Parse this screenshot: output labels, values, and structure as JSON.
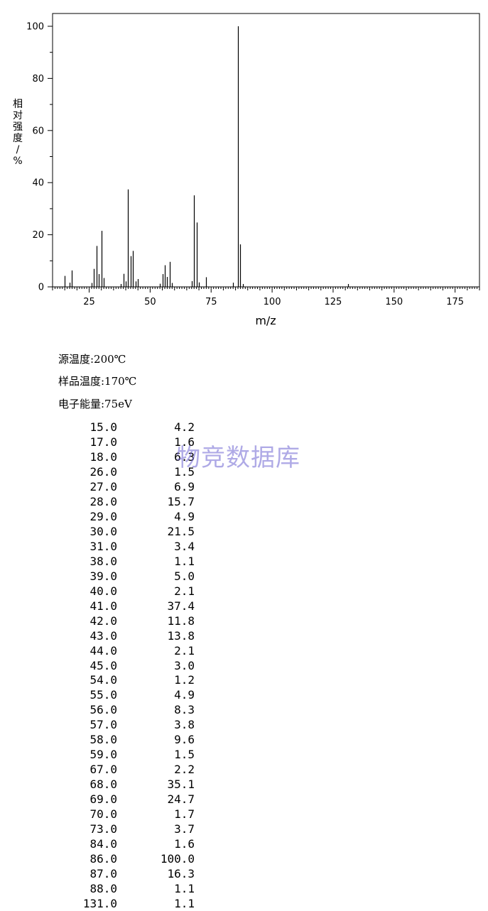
{
  "chart_data": {
    "type": "bar",
    "xlabel": "m/z",
    "ylabel": "相对强度/%",
    "xlim": [
      10,
      185
    ],
    "ylim": [
      0,
      105
    ],
    "xticks": [
      25,
      50,
      75,
      100,
      125,
      150,
      175
    ],
    "yticks": [
      0,
      20,
      40,
      60,
      80,
      100
    ],
    "grid": false,
    "legend": "none",
    "x": [
      15.0,
      17.0,
      18.0,
      26.0,
      27.0,
      28.0,
      29.0,
      30.0,
      31.0,
      38.0,
      39.0,
      40.0,
      41.0,
      42.0,
      43.0,
      44.0,
      45.0,
      54.0,
      55.0,
      56.0,
      57.0,
      58.0,
      59.0,
      67.0,
      68.0,
      69.0,
      70.0,
      73.0,
      84.0,
      86.0,
      87.0,
      88.0,
      131.0
    ],
    "values": [
      4.2,
      1.6,
      6.3,
      1.5,
      6.9,
      15.7,
      4.9,
      21.5,
      3.4,
      1.1,
      5.0,
      2.1,
      37.4,
      11.8,
      13.8,
      2.1,
      3.0,
      1.2,
      4.9,
      8.3,
      3.8,
      9.6,
      1.5,
      2.2,
      35.1,
      24.7,
      1.7,
      3.7,
      1.6,
      100.0,
      16.3,
      1.1,
      1.1
    ]
  },
  "conditions": {
    "source_temp": "源温度:200℃",
    "sample_temp": "样品温度:170℃",
    "electron_energy": "电子能量:75eV"
  },
  "peaks": [
    {
      "mz": "15.0",
      "intensity": "4.2"
    },
    {
      "mz": "17.0",
      "intensity": "1.6"
    },
    {
      "mz": "18.0",
      "intensity": "6.3"
    },
    {
      "mz": "26.0",
      "intensity": "1.5"
    },
    {
      "mz": "27.0",
      "intensity": "6.9"
    },
    {
      "mz": "28.0",
      "intensity": "15.7"
    },
    {
      "mz": "29.0",
      "intensity": "4.9"
    },
    {
      "mz": "30.0",
      "intensity": "21.5"
    },
    {
      "mz": "31.0",
      "intensity": "3.4"
    },
    {
      "mz": "38.0",
      "intensity": "1.1"
    },
    {
      "mz": "39.0",
      "intensity": "5.0"
    },
    {
      "mz": "40.0",
      "intensity": "2.1"
    },
    {
      "mz": "41.0",
      "intensity": "37.4"
    },
    {
      "mz": "42.0",
      "intensity": "11.8"
    },
    {
      "mz": "43.0",
      "intensity": "13.8"
    },
    {
      "mz": "44.0",
      "intensity": "2.1"
    },
    {
      "mz": "45.0",
      "intensity": "3.0"
    },
    {
      "mz": "54.0",
      "intensity": "1.2"
    },
    {
      "mz": "55.0",
      "intensity": "4.9"
    },
    {
      "mz": "56.0",
      "intensity": "8.3"
    },
    {
      "mz": "57.0",
      "intensity": "3.8"
    },
    {
      "mz": "58.0",
      "intensity": "9.6"
    },
    {
      "mz": "59.0",
      "intensity": "1.5"
    },
    {
      "mz": "67.0",
      "intensity": "2.2"
    },
    {
      "mz": "68.0",
      "intensity": "35.1"
    },
    {
      "mz": "69.0",
      "intensity": "24.7"
    },
    {
      "mz": "70.0",
      "intensity": "1.7"
    },
    {
      "mz": "73.0",
      "intensity": "3.7"
    },
    {
      "mz": "84.0",
      "intensity": "1.6"
    },
    {
      "mz": "86.0",
      "intensity": "100.0"
    },
    {
      "mz": "87.0",
      "intensity": "16.3"
    },
    {
      "mz": "88.0",
      "intensity": "1.1"
    },
    {
      "mz": "131.0",
      "intensity": "1.1"
    }
  ],
  "watermark": "物竞数据库",
  "colors": {
    "axis": "#000000",
    "watermark": "#6e64d2"
  }
}
